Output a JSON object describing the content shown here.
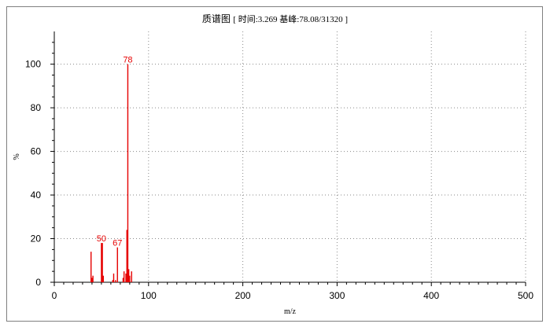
{
  "chart_data": {
    "type": "bar",
    "title": "质谱图",
    "subtitle": {
      "time_label": "时间",
      "time_value": "3.269",
      "base_peak_label": "基峰",
      "base_peak_value": "78.08",
      "base_peak_intensity": "31320"
    },
    "xlabel": "m/z",
    "ylabel": "%",
    "xlim": [
      0,
      500
    ],
    "ylim": [
      0,
      115
    ],
    "x_ticks": [
      0,
      100,
      200,
      300,
      400,
      500
    ],
    "y_ticks": [
      0,
      20,
      40,
      60,
      80,
      100
    ],
    "grid": true,
    "color": "#e60000",
    "peaks": [
      {
        "mz": 39,
        "intensity": 14
      },
      {
        "mz": 40,
        "intensity": 2
      },
      {
        "mz": 41,
        "intensity": 3
      },
      {
        "mz": 50,
        "intensity": 18
      },
      {
        "mz": 51,
        "intensity": 18
      },
      {
        "mz": 52,
        "intensity": 3
      },
      {
        "mz": 62,
        "intensity": 1
      },
      {
        "mz": 63,
        "intensity": 4
      },
      {
        "mz": 65,
        "intensity": 1
      },
      {
        "mz": 67,
        "intensity": 16
      },
      {
        "mz": 73,
        "intensity": 2
      },
      {
        "mz": 74,
        "intensity": 5
      },
      {
        "mz": 76,
        "intensity": 4
      },
      {
        "mz": 77,
        "intensity": 24
      },
      {
        "mz": 78,
        "intensity": 100
      },
      {
        "mz": 79,
        "intensity": 6
      },
      {
        "mz": 80,
        "intensity": 3
      },
      {
        "mz": 82,
        "intensity": 5
      }
    ],
    "annotations": [
      {
        "mz": 50,
        "text": "50",
        "at": 18
      },
      {
        "mz": 67,
        "text": "67",
        "at": 16
      },
      {
        "mz": 78,
        "text": "78",
        "at": 100
      }
    ]
  }
}
